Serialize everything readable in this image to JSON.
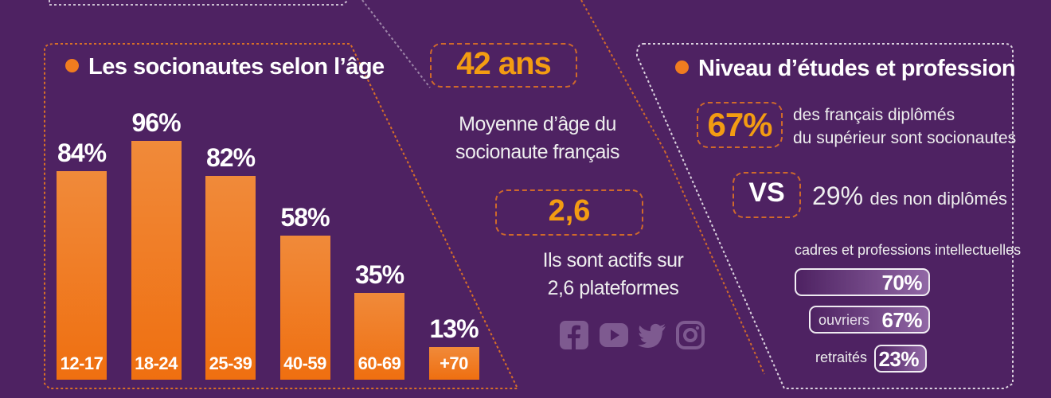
{
  "age_section": {
    "title": "Les socionautes selon l’âge"
  },
  "chart_data": {
    "type": "bar",
    "title": "Les socionautes selon l’âge",
    "categories": [
      "12-17",
      "18-24",
      "25-39",
      "40-59",
      "60-69",
      "+70"
    ],
    "values": [
      84,
      96,
      82,
      58,
      35,
      13
    ],
    "value_labels": [
      "84%",
      "96%",
      "82%",
      "58%",
      "35%",
      "13%"
    ],
    "unit": "%",
    "ylim": [
      0,
      100
    ],
    "xlabel": "",
    "ylabel": "",
    "grid": false,
    "bar_color": "#ef7b1f"
  },
  "center": {
    "age_value": "42 ans",
    "age_caption_line1": "Moyenne d’âge du",
    "age_caption_line2": "socionaute français",
    "platforms_value": "2,6",
    "platforms_caption_line1": "Ils sont actifs sur",
    "platforms_caption_line2": "2,6 plateformes",
    "icons": [
      "facebook-icon",
      "youtube-icon",
      "twitter-icon",
      "instagram-icon"
    ]
  },
  "education": {
    "title": "Niveau d’études et profession",
    "graduates_value": "67%",
    "graduates_text_line1": "des français diplômés",
    "graduates_text_line2": "du supérieur sont socionautes",
    "vs_label": "VS",
    "non_graduates_value": "29%",
    "non_graduates_text": "des non diplômés",
    "professions": [
      {
        "label": "cadres et professions intellectuelles",
        "value": "70%",
        "fraction": 0.7
      },
      {
        "label": "ouvriers",
        "value": "67%",
        "fraction": 0.67
      },
      {
        "label": "retraités",
        "value": "23%",
        "fraction": 0.23
      }
    ]
  },
  "colors": {
    "background": "#4e2262",
    "accent": "#f07c1f",
    "highlight": "#f39c12"
  }
}
